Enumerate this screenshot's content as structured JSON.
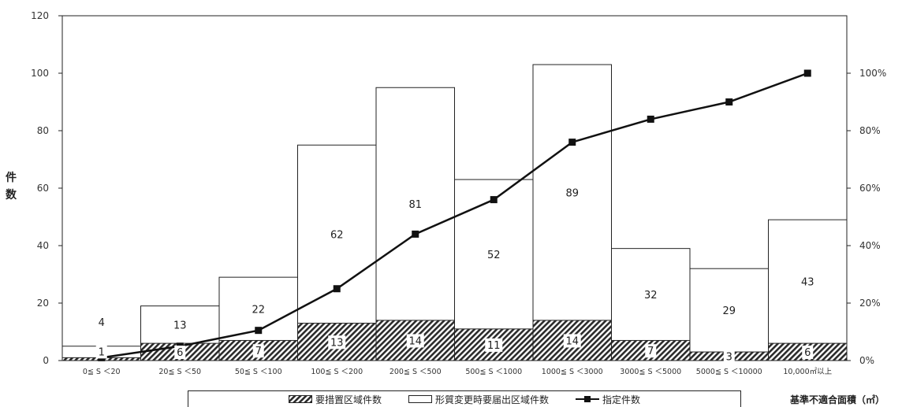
{
  "chart_data": {
    "type": "bar",
    "stacked": true,
    "categories": [
      "0≦ S ＜20",
      "20≦ S ＜50",
      "50≦ S ＜100",
      "100≦ S ＜200",
      "200≦ S ＜500",
      "500≦ S ＜1000",
      "1000≦ S ＜3000",
      "3000≦ S ＜5000",
      "5000≦ S ＜10000",
      "10,000㎡以上"
    ],
    "series": [
      {
        "name": "要措置区域件数",
        "type": "bar",
        "pattern": "hatched",
        "values": [
          1,
          6,
          7,
          13,
          14,
          11,
          14,
          7,
          3,
          6
        ]
      },
      {
        "name": "形質変更時要届出区域件数",
        "type": "bar",
        "pattern": "white",
        "values": [
          4,
          13,
          22,
          62,
          81,
          52,
          89,
          32,
          29,
          43
        ]
      },
      {
        "name": "指定件数",
        "type": "line",
        "axis": "right",
        "values": [
          0.01,
          0.05,
          0.105,
          0.25,
          0.44,
          0.56,
          0.76,
          0.84,
          0.9,
          1.0
        ]
      }
    ],
    "ylabel": "件数",
    "xlabel": "基準不適合面積（㎡）",
    "ylim": [
      0,
      120
    ],
    "yticks": [
      "0",
      "20",
      "40",
      "60",
      "80",
      "100",
      "120"
    ],
    "y2lim": [
      0,
      1.2
    ],
    "y2ticks": [
      "0%",
      "20%",
      "40%",
      "60%",
      "80%",
      "100%"
    ],
    "grid": false,
    "legend_placement": "bottom"
  }
}
